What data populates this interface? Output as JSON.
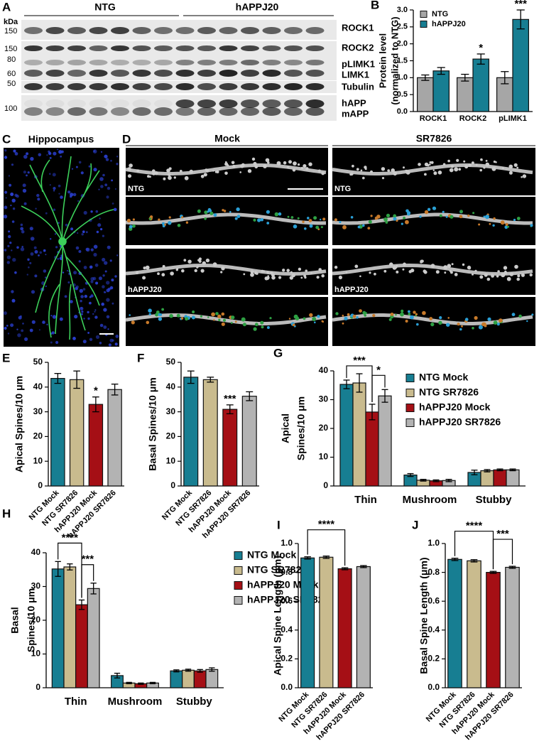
{
  "blot": {
    "panel": "A",
    "unit": "kDa",
    "groups": [
      "NTG",
      "hAPPJ20"
    ],
    "markers": [
      150,
      150,
      80,
      60,
      50,
      100
    ],
    "bands": [
      "ROCK1",
      "ROCK2",
      "pLIMK1",
      "LIMK1",
      "Tubulin",
      "hAPP",
      "mAPP"
    ]
  },
  "hippocampus": {
    "panel": "C",
    "title": "Hippocampus"
  },
  "dendrites": {
    "panel": "D",
    "columns": [
      "Mock",
      "SR7826"
    ],
    "rows": [
      "NTG",
      "hAPPJ20"
    ]
  },
  "chart_data": [
    {
      "panel": "B",
      "type": "bar",
      "y_label": [
        "Protein level",
        "(normalized to NTG)"
      ],
      "categories": [
        "ROCK1",
        "ROCK2",
        "pLIMK1"
      ],
      "series": [
        {
          "name": "NTG",
          "color": "#a6a6a6",
          "values": [
            1.0,
            1.0,
            1.0
          ],
          "errors": [
            0.08,
            0.1,
            0.18
          ]
        },
        {
          "name": "hAPPJ20",
          "color": "#177e92",
          "values": [
            1.2,
            1.55,
            2.72
          ],
          "errors": [
            0.1,
            0.15,
            0.28
          ],
          "value_annotations": [
            null,
            "*",
            "***"
          ]
        }
      ],
      "ylim": [
        0,
        3.0
      ],
      "yticks": [
        {
          "value": 0,
          "label": "0.0"
        },
        0.5,
        {
          "value": 1,
          "label": "1.0"
        },
        1.5,
        {
          "value": 2,
          "label": "2.0"
        },
        2.5,
        {
          "value": 3,
          "label": "3.0"
        }
      ],
      "legend": "upper left"
    },
    {
      "panel": "E",
      "type": "bar",
      "y_label": [
        "Apical Spines/10 μm"
      ],
      "categories": [
        "NTG Mock",
        "NTG SR7826",
        "hAPPJ20 Mock",
        "hAPPJ20 SR7826"
      ],
      "values": [
        43.5,
        43,
        33,
        39
      ],
      "errors": [
        2,
        3.5,
        3,
        2.2
      ],
      "colors": [
        "#177e92",
        "#c9bb8e",
        "#a50f15",
        "#b3b3b3"
      ],
      "value_annotations": [
        null,
        null,
        "*",
        null
      ],
      "ylim": [
        0,
        50
      ],
      "yticks": [
        0,
        10,
        20,
        30,
        40,
        50
      ]
    },
    {
      "panel": "F",
      "type": "bar",
      "y_label": [
        "Basal Spines/10 μm"
      ],
      "categories": [
        "NTG Mock",
        "NTG SR7826",
        "hAPPJ20 Mock",
        "hAPPJ20 SR7826"
      ],
      "values": [
        44,
        43,
        31,
        36.3
      ],
      "errors": [
        2.5,
        1,
        1.8,
        1.8
      ],
      "colors": [
        "#177e92",
        "#c9bb8e",
        "#a50f15",
        "#b3b3b3"
      ],
      "value_annotations": [
        null,
        null,
        "***",
        null
      ],
      "ylim": [
        0,
        50
      ],
      "yticks": [
        0,
        10,
        20,
        30,
        40,
        50
      ]
    },
    {
      "panel": "G",
      "type": "bar",
      "y_label": [
        "Apical",
        "Spines/10 μm"
      ],
      "categories": [
        "Thin",
        "Mushroom",
        "Stubby"
      ],
      "series": [
        {
          "name": "NTG Mock",
          "color": "#177e92",
          "values": [
            35.3,
            3.8,
            4.7
          ],
          "errors": [
            1.5,
            0.5,
            0.8
          ]
        },
        {
          "name": "NTG SR7826",
          "color": "#c9bb8e",
          "values": [
            35.8,
            2,
            5.3
          ],
          "errors": [
            3.2,
            0.3,
            0.4
          ]
        },
        {
          "name": "hAPPJ20 Mock",
          "color": "#a50f15",
          "values": [
            25.7,
            1.8,
            5.6
          ],
          "errors": [
            2.7,
            0.3,
            0.3
          ]
        },
        {
          "name": "hAPPJ20 SR7826",
          "color": "#b3b3b3",
          "values": [
            31.3,
            1.9,
            5.6
          ],
          "errors": [
            2.2,
            0.4,
            0.3
          ]
        }
      ],
      "brackets": [
        "***",
        "*"
      ],
      "ylim": [
        0,
        40
      ],
      "yticks": [
        0,
        10,
        20,
        30,
        40
      ],
      "legend": "upper right"
    },
    {
      "panel": "H",
      "type": "bar",
      "y_label": [
        "Basal",
        "Spines/10 μm"
      ],
      "categories": [
        "Thin",
        "Mushroom",
        "Stubby"
      ],
      "series": [
        {
          "name": "NTG Mock",
          "color": "#177e92",
          "values": [
            35.2,
            3.6,
            5
          ],
          "errors": [
            2.2,
            0.7,
            0.3
          ]
        },
        {
          "name": "NTG SR7826",
          "color": "#c9bb8e",
          "values": [
            35.8,
            1.4,
            5.2
          ],
          "errors": [
            0.9,
            0.2,
            0.3
          ]
        },
        {
          "name": "hAPPJ20 Mock",
          "color": "#a50f15",
          "values": [
            24.6,
            1.2,
            5
          ],
          "errors": [
            1.4,
            0.2,
            0.4
          ]
        },
        {
          "name": "hAPPJ20 SR7826",
          "color": "#b3b3b3",
          "values": [
            29.4,
            1.4,
            5.4
          ],
          "errors": [
            1.6,
            0.2,
            0.5
          ]
        }
      ],
      "brackets": [
        "****",
        "***"
      ],
      "ylim": [
        0,
        40
      ],
      "yticks": [
        0,
        10,
        20,
        30,
        40
      ],
      "legend": "upper right"
    },
    {
      "panel": "I",
      "type": "bar",
      "y_label": [
        "Apical Spine Length (μm)"
      ],
      "categories": [
        "NTG Mock",
        "NTG SR7826",
        "hAPPJ20 Mock",
        "hAPPJ20 SR7826"
      ],
      "values": [
        0.9,
        0.905,
        0.825,
        0.84
      ],
      "errors": [
        0.008,
        0.008,
        0.007,
        0.007
      ],
      "colors": [
        "#177e92",
        "#c9bb8e",
        "#a50f15",
        "#b3b3b3"
      ],
      "brackets": [
        "****"
      ],
      "ylim": [
        0,
        1.0
      ],
      "yticks": [
        {
          "value": 0,
          "label": "0.0"
        },
        0.2,
        0.4,
        0.6,
        0.8,
        {
          "value": 1,
          "label": "1.0"
        }
      ]
    },
    {
      "panel": "J",
      "type": "bar",
      "y_label": [
        "Basal Spine Length (μm)"
      ],
      "categories": [
        "NTG Mock",
        "NTG SR7826",
        "hAPPJ20 Mock",
        "hAPPJ20 SR7826"
      ],
      "values": [
        0.89,
        0.88,
        0.8,
        0.835
      ],
      "errors": [
        0.008,
        0.008,
        0.007,
        0.007
      ],
      "colors": [
        "#177e92",
        "#c9bb8e",
        "#a50f15",
        "#b3b3b3"
      ],
      "brackets": [
        "****",
        "***"
      ],
      "ylim": [
        0,
        1.0
      ],
      "yticks": [
        {
          "value": 0,
          "label": "0.0"
        },
        0.2,
        0.4,
        0.6,
        0.8,
        {
          "value": 1,
          "label": "1.0"
        }
      ]
    }
  ]
}
